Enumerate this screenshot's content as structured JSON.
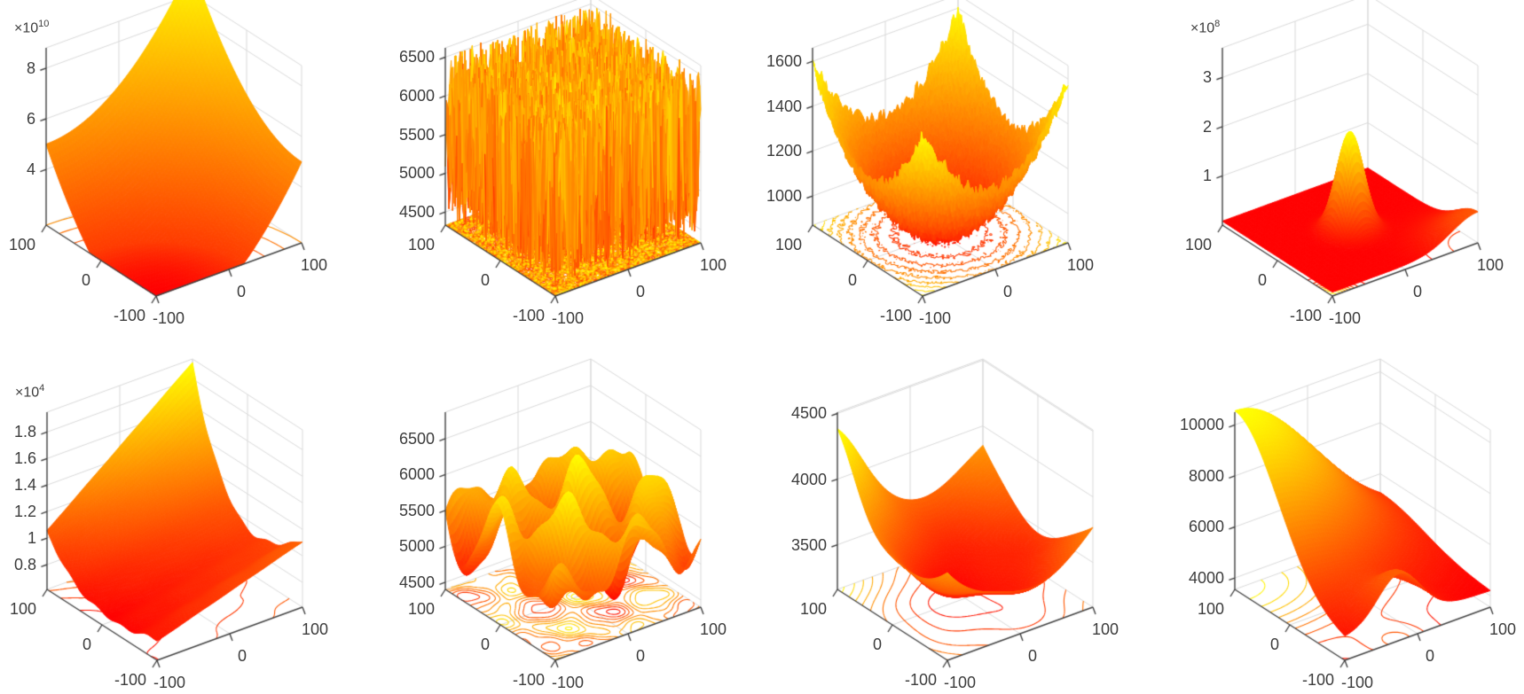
{
  "page": {
    "title": "Grid of eight 3D benchmark-function surface plots with floor contour projections",
    "background": "#ffffff"
  },
  "colors": {
    "surface_low": "#ff0000",
    "surface_high": "#ffff00",
    "axis": "#424242",
    "grid": "#d9d9d9",
    "tick_label": "#3c3c3c",
    "background": "#ffffff"
  },
  "chart_data": [
    {
      "id": "plot-1",
      "row": 0,
      "col": 0,
      "type": "surface3d",
      "colormap": "autumn",
      "view": {
        "azimuth": -37.5,
        "elevation": 30
      },
      "description": "Smooth convex quadratic bowl (shifted sphere) rising from the front corner to ~9.5e10 at the back corner; circular floor contours centered at the front corner",
      "x_range": [
        -100,
        100
      ],
      "y_range": [
        -100,
        100
      ],
      "x_ticks": {
        "values": [
          -100,
          0,
          100
        ],
        "labels": [
          "-100",
          "0",
          "100"
        ]
      },
      "y_ticks": {
        "values": [
          100,
          0,
          -100
        ],
        "labels": [
          "100",
          "0",
          "-100"
        ]
      },
      "z_ticks": {
        "values": [
          40000000000,
          60000000000,
          80000000000
        ],
        "labels": [
          "4",
          "6",
          "8"
        ]
      },
      "z_exponent": {
        "prefix": "×10",
        "power": "10"
      },
      "zlim": [
        18000000000,
        88000000000
      ],
      "grid_n": 56,
      "floor_contours": true,
      "model": {
        "kind": "shifted_sphere",
        "k": 1250000,
        "x0": -100,
        "y0": -100
      }
    },
    {
      "id": "plot-2",
      "row": 0,
      "col": 1,
      "type": "surface3d",
      "colormap": "autumn",
      "view": {
        "azimuth": -37.5,
        "elevation": 30
      },
      "description": "High-frequency uniform random noise field between ~4450 and ~6550 with dense scribbled floor contours",
      "x_range": [
        -100,
        100
      ],
      "y_range": [
        -100,
        100
      ],
      "x_ticks": {
        "values": [
          -100,
          0,
          100
        ],
        "labels": [
          "-100",
          "0",
          "100"
        ]
      },
      "y_ticks": {
        "values": [
          100,
          0,
          -100
        ],
        "labels": [
          "100",
          "0",
          "-100"
        ]
      },
      "z_ticks": {
        "values": [
          4500,
          5000,
          5500,
          6000,
          6500
        ],
        "labels": [
          "4500",
          "5000",
          "5500",
          "6000",
          "6500"
        ]
      },
      "z_exponent": null,
      "zlim": [
        4330,
        6620
      ],
      "grid_n": 100,
      "floor_contours": true,
      "model": {
        "kind": "noise",
        "base": 4450,
        "amp": 2100
      }
    },
    {
      "id": "plot-3",
      "row": 0,
      "col": 2,
      "type": "surface3d",
      "colormap": "autumn",
      "view": {
        "azimuth": -37.5,
        "elevation": 30
      },
      "description": "Rastrigin-like rugged paraboloid bowl, ~880 at center rising to ~1600 at the corners, with noisy concentric circular floor contours",
      "x_range": [
        -100,
        100
      ],
      "y_range": [
        -100,
        100
      ],
      "x_ticks": {
        "values": [
          -100,
          0,
          100
        ],
        "labels": [
          "-100",
          "0",
          "100"
        ]
      },
      "y_ticks": {
        "values": [
          100,
          0,
          -100
        ],
        "labels": [
          "100",
          "0",
          "-100"
        ]
      },
      "z_ticks": {
        "values": [
          1000,
          1200,
          1400,
          1600
        ],
        "labels": [
          "1000",
          "1200",
          "1400",
          "1600"
        ]
      },
      "z_exponent": null,
      "zlim": [
        870,
        1660
      ],
      "grid_n": 96,
      "floor_contours": true,
      "model": {
        "kind": "rastrigin",
        "base": 880,
        "k": 0.0355,
        "jag": 26,
        "wave": 14
      }
    },
    {
      "id": "plot-4",
      "row": 0,
      "col": 3,
      "type": "surface3d",
      "colormap": "autumn",
      "view": {
        "azimuth": -37.5,
        "elevation": 30
      },
      "description": "Nearly flat plane with a sharp yellow needle peak (~2e8) at the origin and a small upturn at the right corner; dense diagonal contours near the front corner",
      "x_range": [
        -100,
        100
      ],
      "y_range": [
        -100,
        100
      ],
      "x_ticks": {
        "values": [
          -100,
          0,
          100
        ],
        "labels": [
          "-100",
          "0",
          "100"
        ]
      },
      "y_ticks": {
        "values": [
          100,
          0,
          -100
        ],
        "labels": [
          "100",
          "0",
          "-100"
        ]
      },
      "z_ticks": {
        "values": [
          100000000,
          200000000,
          300000000
        ],
        "labels": [
          "1",
          "2",
          "3"
        ]
      },
      "z_exponent": {
        "prefix": "×10",
        "power": "8"
      },
      "zlim": [
        0,
        360000000
      ],
      "grid_n": 84,
      "floor_contours": true,
      "model": {
        "kind": "needle",
        "base": 8000000,
        "peak": 200000000,
        "sigma": 450,
        "corner_amp": 55000000,
        "corner_sigma": 2600,
        "contour_corner_amp": 220000000,
        "contour_corner_sigma": 700
      }
    },
    {
      "id": "plot-5",
      "row": 1,
      "col": 0,
      "type": "surface3d",
      "colormap": "autumn",
      "view": {
        "azimuth": -37.5,
        "elevation": 30
      },
      "description": "Rippled parabolic valley running parallel to the x-axis, low (~7000) at the front-left, rising to a yellow ridge (~1.9e4) at the back-right; wavy parallel floor contours",
      "x_range": [
        -100,
        100
      ],
      "y_range": [
        -100,
        100
      ],
      "x_ticks": {
        "values": [
          -100,
          0,
          100
        ],
        "labels": [
          "-100",
          "0",
          "100"
        ]
      },
      "y_ticks": {
        "values": [
          100,
          0,
          -100
        ],
        "labels": [
          "100",
          "0",
          "-100"
        ]
      },
      "z_ticks": {
        "values": [
          8000,
          10000,
          12000,
          14000,
          16000,
          18000
        ],
        "labels": [
          "0.8",
          "1",
          "1.2",
          "1.4",
          "1.6",
          "1.8"
        ]
      },
      "z_exponent": {
        "prefix": "×10",
        "power": "4"
      },
      "zlim": [
        6130,
        19500
      ],
      "grid_n": 88,
      "floor_contours": true,
      "model": {
        "kind": "valley",
        "base": 7000,
        "s0": 0.16,
        "s1": 0.3,
        "yoff": 20,
        "skew": 0.5,
        "xlin": 11,
        "ry_amp": 110,
        "ry_per": 7.2,
        "rx_amp": 60,
        "rx_per": 9.5,
        "rxy_per": 13
      }
    },
    {
      "id": "plot-6",
      "row": 1,
      "col": 1,
      "type": "surface3d",
      "colormap": "autumn",
      "view": {
        "azimuth": -37.5,
        "elevation": 30
      },
      "description": "Smooth multimodal landscape of hills and basins between ~4500 and ~6900 with blobby closed floor contours",
      "x_range": [
        -100,
        100
      ],
      "y_range": [
        -100,
        100
      ],
      "x_ticks": {
        "values": [
          -100,
          0,
          100
        ],
        "labels": [
          "-100",
          "0",
          "100"
        ]
      },
      "y_ticks": {
        "values": [
          100,
          0,
          -100
        ],
        "labels": [
          "100",
          "0",
          "-100"
        ]
      },
      "z_ticks": {
        "values": [
          4500,
          5000,
          5500,
          6000,
          6500
        ],
        "labels": [
          "4500",
          "5000",
          "5500",
          "6000",
          "6500"
        ]
      },
      "z_exponent": null,
      "zlim": [
        4400,
        6870
      ],
      "grid_n": 72,
      "floor_contours": true,
      "model": {
        "kind": "hills",
        "base": 5450,
        "a1": 420,
        "a2": 360,
        "a3": 230,
        "a4": 150
      }
    },
    {
      "id": "plot-7",
      "row": 1,
      "col": 2,
      "type": "surface3d",
      "colormap": "autumn",
      "view": {
        "azimuth": -37.5,
        "elevation": 30
      },
      "description": "Shallow asymmetric bowl (~3250 minimum near center) with a raised yellow back-left corner (~4430); nested U-shaped floor contours",
      "x_range": [
        -100,
        100
      ],
      "y_range": [
        -100,
        100
      ],
      "x_ticks": {
        "values": [
          -100,
          0,
          100
        ],
        "labels": [
          "-100",
          "0",
          "100"
        ]
      },
      "y_ticks": {
        "values": [
          100,
          0,
          -100
        ],
        "labels": [
          "100",
          "0",
          "-100"
        ]
      },
      "z_ticks": {
        "values": [
          3500,
          4000,
          4500
        ],
        "labels": [
          "3500",
          "4000",
          "4500"
        ]
      },
      "z_exponent": null,
      "zlim": [
        3160,
        4510
      ],
      "grid_n": 64,
      "floor_contours": true,
      "model": {
        "kind": "bowl",
        "base": 3270,
        "k": 0.0285,
        "warp": 0.25,
        "bump_amp": 470,
        "bump_sigma": 3000,
        "wave_amp": 40
      }
    },
    {
      "id": "plot-8",
      "row": 1,
      "col": 3,
      "type": "surface3d",
      "colormap": "autumn",
      "view": {
        "azimuth": -37.5,
        "elevation": 30
      },
      "description": "Steep sheet descending from a yellow peak (~10500) at the back-left corner toward a flat plain (~4200), with a secondary yellow crease bump (~6000) near the front; sweeping curved floor contours",
      "x_range": [
        -100,
        100
      ],
      "y_range": [
        -100,
        100
      ],
      "x_ticks": {
        "values": [
          -100,
          0,
          100
        ],
        "labels": [
          "-100",
          "0",
          "100"
        ]
      },
      "y_ticks": {
        "values": [
          100,
          0,
          -100
        ],
        "labels": [
          "100",
          "0",
          "-100"
        ]
      },
      "z_ticks": {
        "values": [
          4000,
          6000,
          8000,
          10000
        ],
        "labels": [
          "4000",
          "6000",
          "8000",
          "10000"
        ]
      },
      "z_exponent": null,
      "zlim": [
        3550,
        10500
      ],
      "grid_n": 64,
      "floor_contours": true,
      "model": {
        "kind": "ridge",
        "base": 4150,
        "amp": 6400,
        "wx": 0.35,
        "wy": 0.62,
        "sigma": 8000,
        "bump_amp": 1800,
        "bump_sigma": 1700,
        "bump_x": -25,
        "bump_y": -100
      }
    }
  ]
}
